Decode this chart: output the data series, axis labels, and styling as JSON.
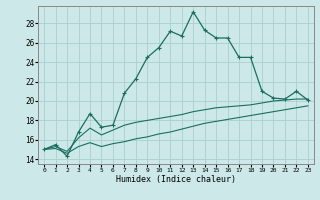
{
  "title": "",
  "xlabel": "Humidex (Indice chaleur)",
  "bg_color": "#cce8e8",
  "grid_color": "#aacfcf",
  "line_color": "#1a6e60",
  "xlim": [
    -0.5,
    23.5
  ],
  "ylim": [
    13.5,
    29.8
  ],
  "xticks": [
    0,
    1,
    2,
    3,
    4,
    5,
    6,
    7,
    8,
    9,
    10,
    11,
    12,
    13,
    14,
    15,
    16,
    17,
    18,
    19,
    20,
    21,
    22,
    23
  ],
  "yticks": [
    14,
    16,
    18,
    20,
    22,
    24,
    26,
    28
  ],
  "line1_x": [
    0,
    1,
    2,
    3,
    4,
    5,
    6,
    7,
    8,
    9,
    10,
    11,
    12,
    13,
    14,
    15,
    16,
    17,
    18,
    19,
    20,
    21,
    22,
    23
  ],
  "line1_y": [
    15.0,
    15.5,
    14.3,
    16.8,
    18.7,
    17.3,
    17.5,
    20.8,
    22.3,
    24.5,
    25.5,
    27.2,
    26.7,
    29.2,
    27.3,
    26.5,
    26.5,
    24.5,
    24.5,
    21.0,
    20.3,
    20.2,
    21.0,
    20.1
  ],
  "line2_x": [
    0,
    1,
    2,
    3,
    4,
    5,
    6,
    7,
    8,
    9,
    10,
    11,
    12,
    13,
    14,
    15,
    16,
    17,
    18,
    19,
    20,
    21,
    22,
    23
  ],
  "line2_y": [
    15.0,
    15.3,
    14.8,
    16.2,
    17.2,
    16.5,
    17.0,
    17.5,
    17.8,
    18.0,
    18.2,
    18.4,
    18.6,
    18.9,
    19.1,
    19.3,
    19.4,
    19.5,
    19.6,
    19.8,
    20.0,
    20.1,
    20.2,
    20.2
  ],
  "line3_x": [
    0,
    1,
    2,
    3,
    4,
    5,
    6,
    7,
    8,
    9,
    10,
    11,
    12,
    13,
    14,
    15,
    16,
    17,
    18,
    19,
    20,
    21,
    22,
    23
  ],
  "line3_y": [
    15.0,
    15.1,
    14.6,
    15.3,
    15.7,
    15.3,
    15.6,
    15.8,
    16.1,
    16.3,
    16.6,
    16.8,
    17.1,
    17.4,
    17.7,
    17.9,
    18.1,
    18.3,
    18.5,
    18.7,
    18.9,
    19.1,
    19.3,
    19.5
  ]
}
